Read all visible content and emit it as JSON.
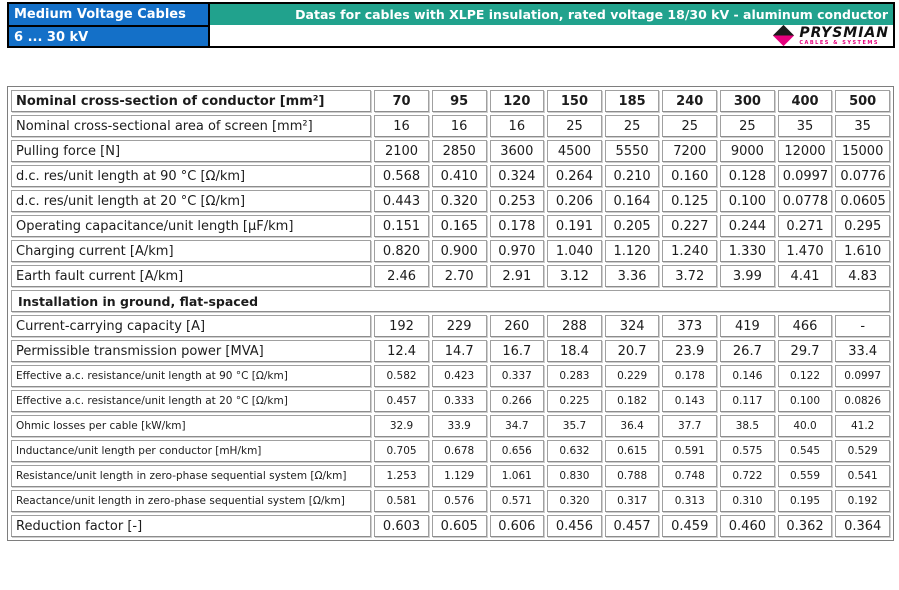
{
  "banner": {
    "product_line": "Medium Voltage Cables",
    "voltage_range": "6 ... 30 kV",
    "sheet_title": "Datas for cables with XLPE insulation, rated voltage 18/30 kV - aluminum conductor",
    "brand": {
      "name": "PRYSMIAN",
      "tagline": "CABLES & SYSTEMS"
    },
    "colors": {
      "blue": "#1470c8",
      "teal": "#21a28d",
      "magenta": "#e5007d"
    }
  },
  "table": {
    "header_row_label": "Nominal cross-section of conductor [mm²]",
    "columns": [
      "70",
      "95",
      "120",
      "150",
      "185",
      "240",
      "300",
      "400",
      "500"
    ],
    "rows": [
      {
        "style": "header",
        "label": "Nominal cross-section of conductor [mm²]",
        "values": [
          "70",
          "95",
          "120",
          "150",
          "185",
          "240",
          "300",
          "400",
          "500"
        ]
      },
      {
        "style": "normal",
        "label": "Nominal cross-sectional area of screen [mm²]",
        "values": [
          "16",
          "16",
          "16",
          "25",
          "25",
          "25",
          "25",
          "35",
          "35"
        ]
      },
      {
        "style": "normal",
        "label": "Pulling force [N]",
        "values": [
          "2100",
          "2850",
          "3600",
          "4500",
          "5550",
          "7200",
          "9000",
          "12000",
          "15000"
        ]
      },
      {
        "style": "normal",
        "label": "d.c. res/unit length at 90 °C [Ω/km]",
        "values": [
          "0.568",
          "0.410",
          "0.324",
          "0.264",
          "0.210",
          "0.160",
          "0.128",
          "0.0997",
          "0.0776"
        ]
      },
      {
        "style": "normal",
        "label": "d.c. res/unit length at 20 °C [Ω/km]",
        "values": [
          "0.443",
          "0.320",
          "0.253",
          "0.206",
          "0.164",
          "0.125",
          "0.100",
          "0.0778",
          "0.0605"
        ]
      },
      {
        "style": "normal",
        "label": "Operating capacitance/unit length [μF/km]",
        "values": [
          "0.151",
          "0.165",
          "0.178",
          "0.191",
          "0.205",
          "0.227",
          "0.244",
          "0.271",
          "0.295"
        ]
      },
      {
        "style": "normal",
        "label": "Charging current [A/km]",
        "values": [
          "0.820",
          "0.900",
          "0.970",
          "1.040",
          "1.120",
          "1.240",
          "1.330",
          "1.470",
          "1.610"
        ]
      },
      {
        "style": "normal",
        "label": "Earth fault current [A/km]",
        "values": [
          "2.46",
          "2.70",
          "2.91",
          "3.12",
          "3.36",
          "3.72",
          "3.99",
          "4.41",
          "4.83"
        ]
      },
      {
        "style": "section",
        "label": "Installation in ground, flat-spaced"
      },
      {
        "style": "normal",
        "label": "Current-carrying capacity [A]",
        "values": [
          "192",
          "229",
          "260",
          "288",
          "324",
          "373",
          "419",
          "466",
          "-"
        ]
      },
      {
        "style": "normal",
        "label": "Permissible transmission power [MVA]",
        "values": [
          "12.4",
          "14.7",
          "16.7",
          "18.4",
          "20.7",
          "23.9",
          "26.7",
          "29.7",
          "33.4"
        ]
      },
      {
        "style": "small",
        "label": "Effective a.c. resistance/unit length at 90 °C [Ω/km]",
        "values": [
          "0.582",
          "0.423",
          "0.337",
          "0.283",
          "0.229",
          "0.178",
          "0.146",
          "0.122",
          "0.0997"
        ]
      },
      {
        "style": "small",
        "label": "Effective a.c. resistance/unit length at 20 °C [Ω/km]",
        "values": [
          "0.457",
          "0.333",
          "0.266",
          "0.225",
          "0.182",
          "0.143",
          "0.117",
          "0.100",
          "0.0826"
        ]
      },
      {
        "style": "small",
        "label": "Ohmic losses per cable [kW/km]",
        "values": [
          "32.9",
          "33.9",
          "34.7",
          "35.7",
          "36.4",
          "37.7",
          "38.5",
          "40.0",
          "41.2"
        ]
      },
      {
        "style": "small",
        "label": "Inductance/unit length per conductor [mH/km]",
        "values": [
          "0.705",
          "0.678",
          "0.656",
          "0.632",
          "0.615",
          "0.591",
          "0.575",
          "0.545",
          "0.529"
        ]
      },
      {
        "style": "small",
        "label": "Resistance/unit length in zero-phase sequential system [Ω/km]",
        "values": [
          "1.253",
          "1.129",
          "1.061",
          "0.830",
          "0.788",
          "0.748",
          "0.722",
          "0.559",
          "0.541"
        ]
      },
      {
        "style": "small",
        "label": "Reactance/unit length in zero-phase sequential system [Ω/km]",
        "values": [
          "0.581",
          "0.576",
          "0.571",
          "0.320",
          "0.317",
          "0.313",
          "0.310",
          "0.195",
          "0.192"
        ]
      },
      {
        "style": "normal",
        "label": "Reduction factor [-]",
        "values": [
          "0.603",
          "0.605",
          "0.606",
          "0.456",
          "0.457",
          "0.459",
          "0.460",
          "0.362",
          "0.364"
        ]
      }
    ]
  }
}
